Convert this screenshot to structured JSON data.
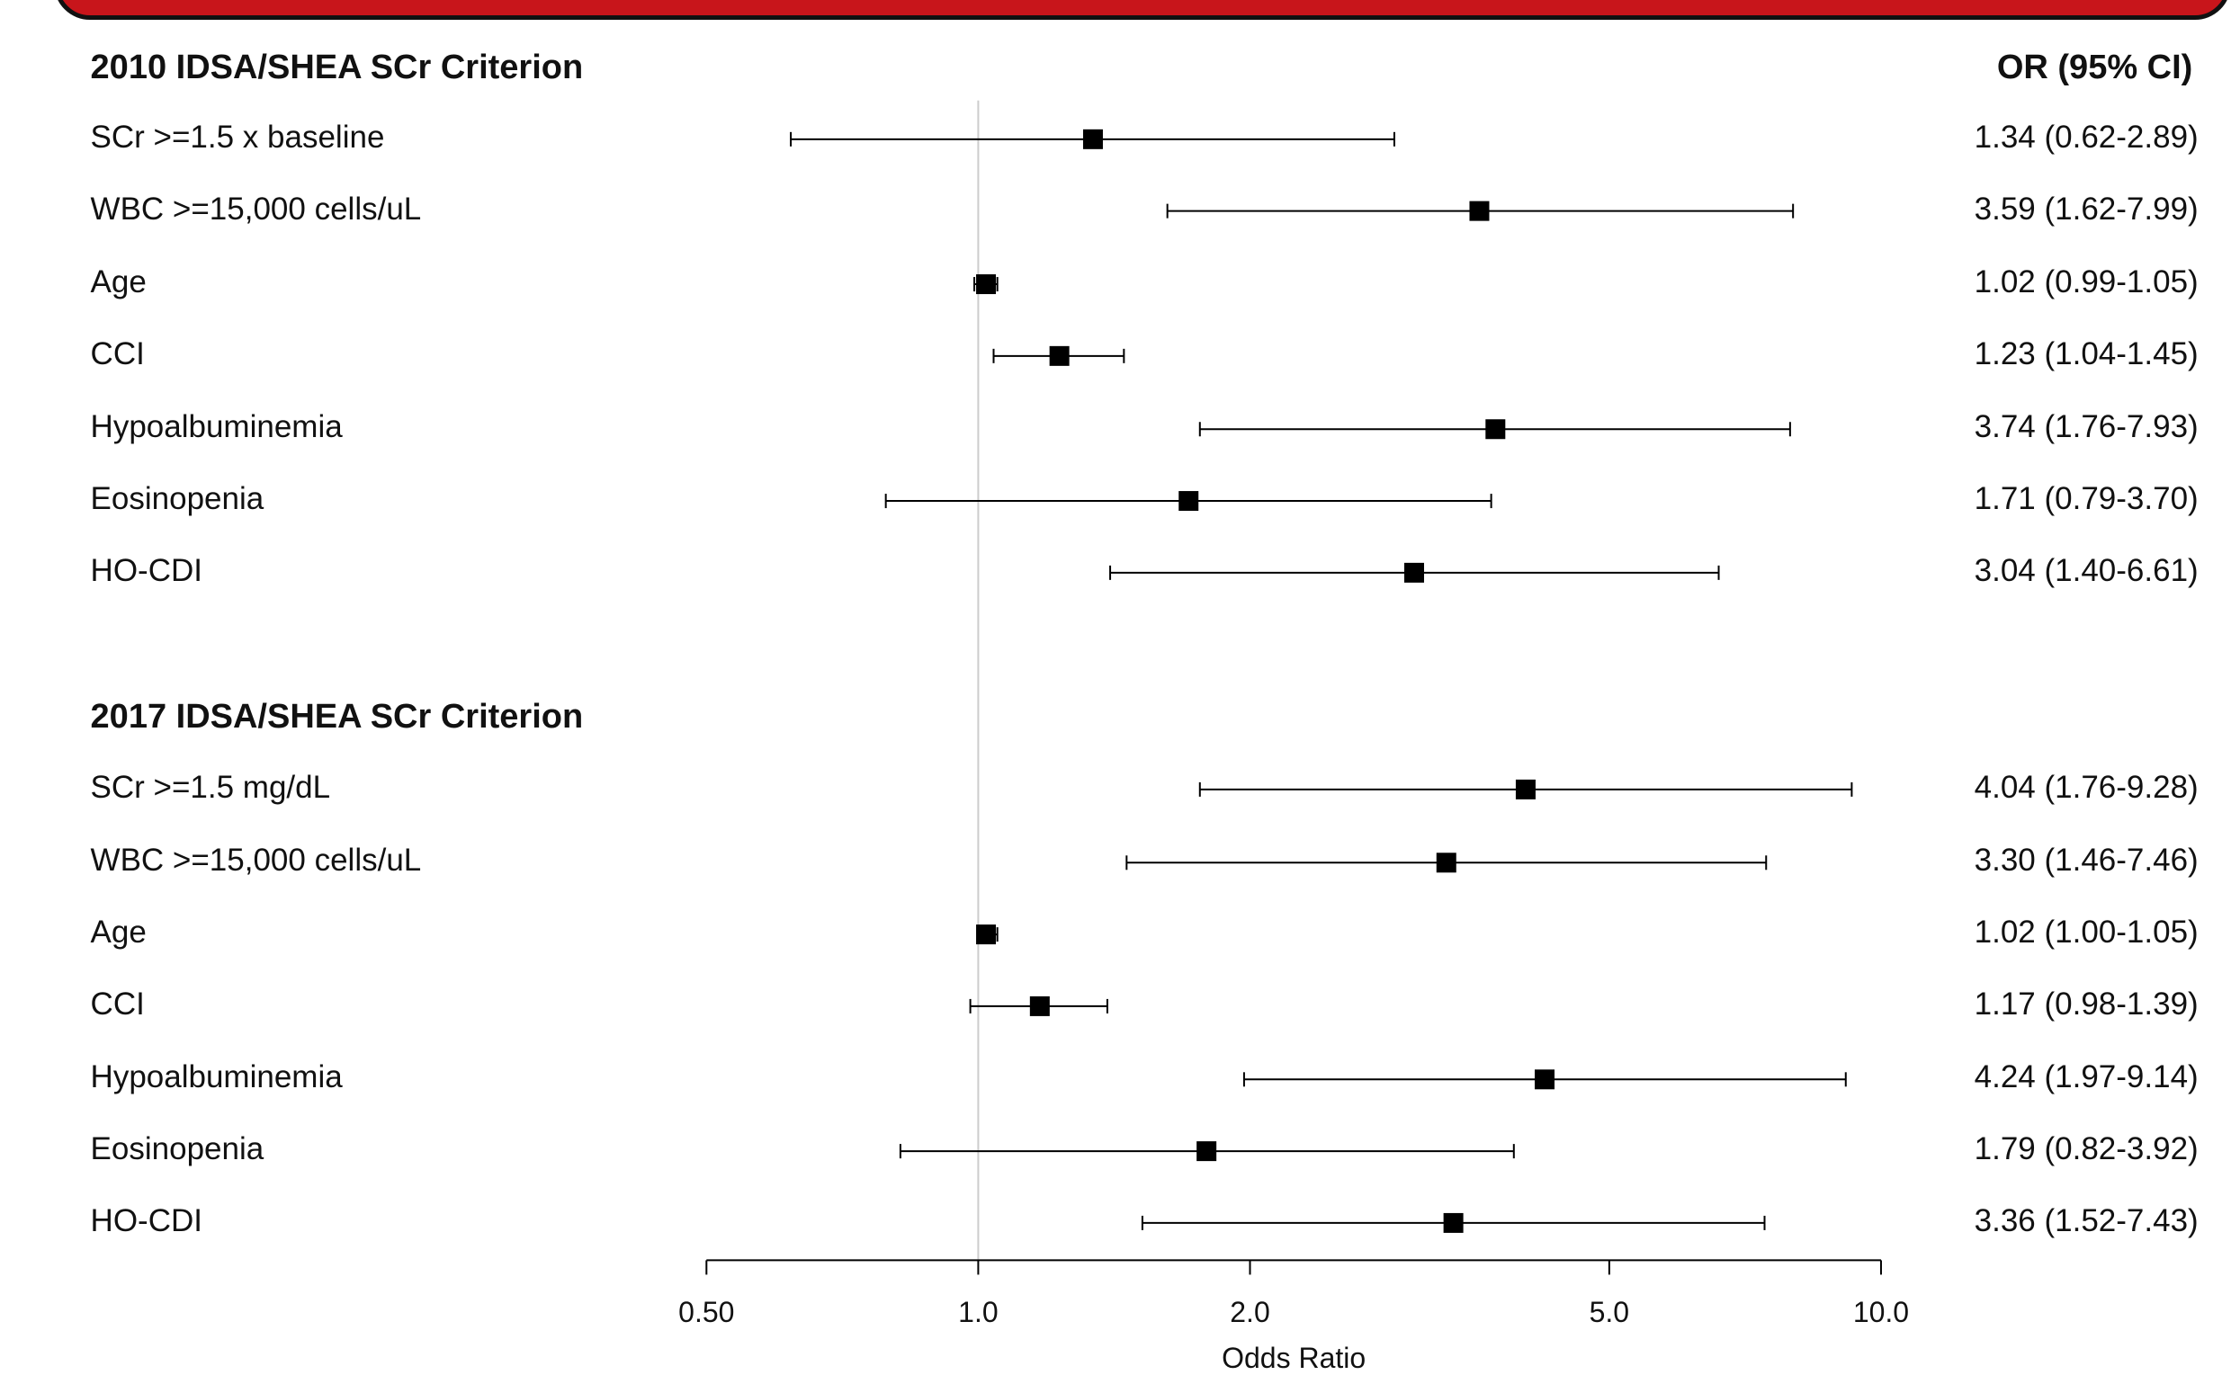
{
  "chart_data": {
    "type": "forest",
    "xlabel": "Odds Ratio",
    "x_scale": "log",
    "xlim": [
      0.5,
      10.0
    ],
    "xticks": [
      "0.50",
      "1.0",
      "2.0",
      "5.0",
      "10.0"
    ],
    "reference_line": 1.0,
    "column_header": "OR (95% CI)",
    "groups": [
      {
        "title": "2010 IDSA/SHEA SCr Criterion",
        "rows": [
          {
            "label": "SCr >=1.5 x baseline",
            "or": 1.34,
            "lo": 0.62,
            "hi": 2.89,
            "text": "1.34 (0.62-2.89)"
          },
          {
            "label": "WBC >=15,000 cells/uL",
            "or": 3.59,
            "lo": 1.62,
            "hi": 7.99,
            "text": "3.59 (1.62-7.99)"
          },
          {
            "label": "Age",
            "or": 1.02,
            "lo": 0.99,
            "hi": 1.05,
            "text": "1.02 (0.99-1.05)"
          },
          {
            "label": "CCI",
            "or": 1.23,
            "lo": 1.04,
            "hi": 1.45,
            "text": "1.23 (1.04-1.45)"
          },
          {
            "label": "Hypoalbuminemia",
            "or": 3.74,
            "lo": 1.76,
            "hi": 7.93,
            "text": "3.74 (1.76-7.93)"
          },
          {
            "label": "Eosinopenia",
            "or": 1.71,
            "lo": 0.79,
            "hi": 3.7,
            "text": "1.71 (0.79-3.70)"
          },
          {
            "label": "HO-CDI",
            "or": 3.04,
            "lo": 1.4,
            "hi": 6.61,
            "text": "3.04 (1.40-6.61)"
          }
        ]
      },
      {
        "title": "2017 IDSA/SHEA SCr Criterion",
        "rows": [
          {
            "label": "SCr >=1.5 mg/dL",
            "or": 4.04,
            "lo": 1.76,
            "hi": 9.28,
            "text": "4.04 (1.76-9.28)"
          },
          {
            "label": "WBC >=15,000 cells/uL",
            "or": 3.3,
            "lo": 1.46,
            "hi": 7.46,
            "text": "3.30 (1.46-7.46)"
          },
          {
            "label": "Age",
            "or": 1.02,
            "lo": 1.0,
            "hi": 1.05,
            "text": "1.02 (1.00-1.05)"
          },
          {
            "label": "CCI",
            "or": 1.17,
            "lo": 0.98,
            "hi": 1.39,
            "text": "1.17 (0.98-1.39)"
          },
          {
            "label": "Hypoalbuminemia",
            "or": 4.24,
            "lo": 1.97,
            "hi": 9.14,
            "text": "4.24 (1.97-9.14)"
          },
          {
            "label": "Eosinopenia",
            "or": 1.79,
            "lo": 0.82,
            "hi": 3.92,
            "text": "1.79 (0.82-3.92)"
          },
          {
            "label": "HO-CDI",
            "or": 3.36,
            "lo": 1.52,
            "hi": 7.43,
            "text": "3.36 (1.52-7.43)"
          }
        ]
      }
    ]
  },
  "colors": {
    "banner": "#c8151b",
    "marker": "#000000",
    "reference_line": "#cccccc"
  }
}
